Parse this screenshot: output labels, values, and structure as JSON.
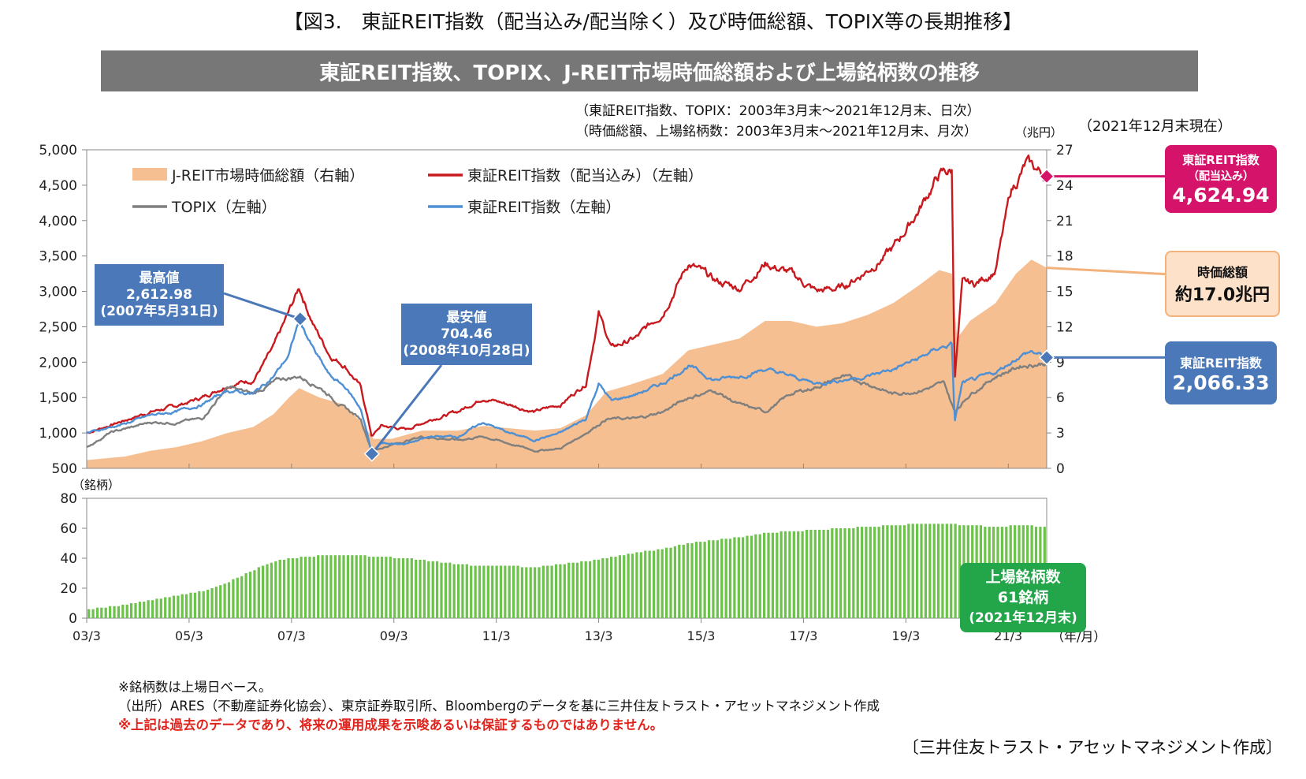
{
  "title": "【図3.　東証REIT指数（配当込み/配当除く）及び時価総額、TOPIX等の長期推移】",
  "banner": "東証REIT指数、TOPIX、J-REIT市場時価総額および上場銘柄数の推移",
  "notes": {
    "line1": "（東証REIT指数、TOPIX：2003年3月末～2021年12月末、日次）",
    "line2": "（時価総額、上場銘柄数：2003年3月末～2021年12月末、月次）",
    "right_unit": "（兆円）",
    "as_of": "（2021年12月末現在）",
    "count_unit": "（銘柄）",
    "x_unit": "（年/月）"
  },
  "legend": {
    "mcap": "J-REIT市場時価総額（右軸）",
    "reit_div": "東証REIT指数（配当込み）（左軸）",
    "topix": "TOPIX（左軸）",
    "reit": "東証REIT指数（左軸）"
  },
  "callouts": {
    "high": {
      "title": "最高値",
      "value": "2,612.98",
      "date": "(2007年5月31日)"
    },
    "low": {
      "title": "最安値",
      "value": "704.46",
      "date": "(2008年10月28日)"
    },
    "reit_div": {
      "title": "東証REIT指数",
      "sub": "（配当込み）",
      "value": "4,624.94"
    },
    "mcap": {
      "title": "時価総額",
      "value": "約17.0兆円"
    },
    "reit": {
      "title": "東証REIT指数",
      "value": "2,066.33"
    },
    "count": {
      "title": "上場銘柄数",
      "value": "61銘柄",
      "date": "(2021年12月末)"
    }
  },
  "footnotes": {
    "f1": "※銘柄数は上場日ベース。",
    "f2": "（出所）ARES（不動産証券化協会）、東京証券取引所、Bloombergのデータを基に三井住友トラスト・アセットマネジメント作成",
    "f3": "※上記は過去のデータであり、将来の運用成果を示唆あるいは保証するものではありません。"
  },
  "credit": "〔三井住友トラスト・アセットマネジメント作成〕",
  "colors": {
    "reit_div": "#c8191e",
    "topix": "#7f7f7f",
    "reit": "#4f8fd3",
    "mcap": "#f5bf91",
    "count": "#6cc24a",
    "callout_blue": "#4a78b8",
    "callout_red": "#d6136a",
    "callout_green": "#23a54a",
    "callout_peach": "#fde1c9"
  },
  "chart_data": [
    {
      "type": "line",
      "x_ticks": [
        "03/3",
        "05/3",
        "07/3",
        "09/3",
        "11/3",
        "13/3",
        "15/3",
        "17/3",
        "19/3",
        "21/3"
      ],
      "xlim": [
        2003.25,
        2022.0
      ],
      "ylim_left": [
        500,
        5000
      ],
      "yticks_left": [
        "500",
        "1,000",
        "1,500",
        "2,000",
        "2,500",
        "3,000",
        "3,500",
        "4,000",
        "4,500",
        "5,000"
      ],
      "ylim_right": [
        0,
        27
      ],
      "yticks_right": [
        "0",
        "3",
        "6",
        "9",
        "12",
        "15",
        "18",
        "21",
        "24",
        "27"
      ],
      "series": [
        {
          "name": "J-REIT市場時価総額（右軸）",
          "axis": "right",
          "style": "area",
          "points": [
            [
              2003.25,
              0.7
            ],
            [
              2004.0,
              1.0
            ],
            [
              2004.5,
              1.5
            ],
            [
              2005.0,
              1.8
            ],
            [
              2005.5,
              2.3
            ],
            [
              2006.0,
              3.0
            ],
            [
              2006.5,
              3.5
            ],
            [
              2006.9,
              4.6
            ],
            [
              2007.2,
              6.0
            ],
            [
              2007.4,
              6.8
            ],
            [
              2007.8,
              6.0
            ],
            [
              2008.2,
              5.5
            ],
            [
              2008.6,
              4.0
            ],
            [
              2008.85,
              2.5
            ],
            [
              2009.2,
              2.5
            ],
            [
              2009.8,
              3.2
            ],
            [
              2010.5,
              3.2
            ],
            [
              2011.0,
              3.6
            ],
            [
              2011.5,
              3.4
            ],
            [
              2012.0,
              3.2
            ],
            [
              2012.5,
              3.4
            ],
            [
              2013.0,
              4.5
            ],
            [
              2013.4,
              6.5
            ],
            [
              2013.8,
              7.0
            ],
            [
              2014.5,
              8.0
            ],
            [
              2015.0,
              10.0
            ],
            [
              2015.5,
              10.5
            ],
            [
              2016.0,
              11.0
            ],
            [
              2016.5,
              12.5
            ],
            [
              2017.0,
              12.5
            ],
            [
              2017.5,
              12.0
            ],
            [
              2018.0,
              12.3
            ],
            [
              2018.5,
              13.0
            ],
            [
              2019.0,
              14.0
            ],
            [
              2019.5,
              15.5
            ],
            [
              2019.9,
              16.8
            ],
            [
              2020.15,
              16.5
            ],
            [
              2020.25,
              11.0
            ],
            [
              2020.5,
              12.5
            ],
            [
              2021.0,
              14.0
            ],
            [
              2021.4,
              16.5
            ],
            [
              2021.7,
              17.7
            ],
            [
              2022.0,
              17.0
            ]
          ]
        },
        {
          "name": "東証REIT指数（配当込み）（左軸）",
          "axis": "left",
          "style": "line",
          "points": [
            [
              2003.25,
              1000
            ],
            [
              2004.0,
              1180
            ],
            [
              2004.5,
              1300
            ],
            [
              2005.0,
              1380
            ],
            [
              2005.5,
              1500
            ],
            [
              2006.0,
              1680
            ],
            [
              2006.5,
              1750
            ],
            [
              2006.9,
              2200
            ],
            [
              2007.2,
              2700
            ],
            [
              2007.4,
              3050
            ],
            [
              2007.7,
              2500
            ],
            [
              2008.0,
              2100
            ],
            [
              2008.3,
              1950
            ],
            [
              2008.6,
              1650
            ],
            [
              2008.82,
              950
            ],
            [
              2009.0,
              1100
            ],
            [
              2009.5,
              1050
            ],
            [
              2010.0,
              1200
            ],
            [
              2010.5,
              1300
            ],
            [
              2011.0,
              1500
            ],
            [
              2011.5,
              1400
            ],
            [
              2012.0,
              1300
            ],
            [
              2012.5,
              1400
            ],
            [
              2013.0,
              1700
            ],
            [
              2013.25,
              2700
            ],
            [
              2013.5,
              2200
            ],
            [
              2014.0,
              2350
            ],
            [
              2014.5,
              2700
            ],
            [
              2015.0,
              3400
            ],
            [
              2015.5,
              3150
            ],
            [
              2016.0,
              3050
            ],
            [
              2016.5,
              3400
            ],
            [
              2017.0,
              3250
            ],
            [
              2017.5,
              3000
            ],
            [
              2018.0,
              3050
            ],
            [
              2018.5,
              3300
            ],
            [
              2019.0,
              3600
            ],
            [
              2019.5,
              4150
            ],
            [
              2019.9,
              4650
            ],
            [
              2020.15,
              4700
            ],
            [
              2020.2,
              1750
            ],
            [
              2020.35,
              3100
            ],
            [
              2020.6,
              3100
            ],
            [
              2021.0,
              3300
            ],
            [
              2021.3,
              4400
            ],
            [
              2021.6,
              4800
            ],
            [
              2022.0,
              4625
            ]
          ]
        },
        {
          "name": "TOPIX（左軸）",
          "axis": "left",
          "style": "line",
          "points": [
            [
              2003.25,
              800
            ],
            [
              2003.7,
              1000
            ],
            [
              2004.5,
              1150
            ],
            [
              2005.0,
              1150
            ],
            [
              2005.5,
              1200
            ],
            [
              2006.0,
              1650
            ],
            [
              2006.5,
              1550
            ],
            [
              2007.0,
              1750
            ],
            [
              2007.4,
              1800
            ],
            [
              2007.8,
              1650
            ],
            [
              2008.2,
              1400
            ],
            [
              2008.6,
              1200
            ],
            [
              2008.82,
              750
            ],
            [
              2009.3,
              850
            ],
            [
              2009.8,
              950
            ],
            [
              2010.5,
              900
            ],
            [
              2011.0,
              950
            ],
            [
              2011.5,
              850
            ],
            [
              2012.0,
              750
            ],
            [
              2012.5,
              780
            ],
            [
              2013.0,
              1000
            ],
            [
              2013.4,
              1200
            ],
            [
              2014.0,
              1200
            ],
            [
              2014.5,
              1300
            ],
            [
              2015.0,
              1500
            ],
            [
              2015.5,
              1600
            ],
            [
              2016.0,
              1400
            ],
            [
              2016.5,
              1300
            ],
            [
              2017.0,
              1550
            ],
            [
              2017.5,
              1650
            ],
            [
              2018.0,
              1800
            ],
            [
              2018.5,
              1700
            ],
            [
              2019.0,
              1550
            ],
            [
              2019.5,
              1600
            ],
            [
              2020.0,
              1700
            ],
            [
              2020.2,
              1300
            ],
            [
              2020.5,
              1550
            ],
            [
              2021.0,
              1800
            ],
            [
              2021.5,
              1950
            ],
            [
              2022.0,
              1990
            ]
          ]
        },
        {
          "name": "東証REIT指数（左軸）",
          "axis": "left",
          "style": "line",
          "points": [
            [
              2003.25,
              1000
            ],
            [
              2004.0,
              1130
            ],
            [
              2004.5,
              1250
            ],
            [
              2005.0,
              1300
            ],
            [
              2005.5,
              1400
            ],
            [
              2006.0,
              1600
            ],
            [
              2006.5,
              1550
            ],
            [
              2006.9,
              1800
            ],
            [
              2007.2,
              2100
            ],
            [
              2007.4,
              2600
            ],
            [
              2007.7,
              2150
            ],
            [
              2008.0,
              1800
            ],
            [
              2008.3,
              1650
            ],
            [
              2008.6,
              1350
            ],
            [
              2008.82,
              720
            ],
            [
              2009.0,
              850
            ],
            [
              2009.5,
              850
            ],
            [
              2010.0,
              950
            ],
            [
              2010.5,
              950
            ],
            [
              2011.0,
              1150
            ],
            [
              2011.5,
              1000
            ],
            [
              2012.0,
              900
            ],
            [
              2012.5,
              1000
            ],
            [
              2013.0,
              1200
            ],
            [
              2013.25,
              1700
            ],
            [
              2013.5,
              1450
            ],
            [
              2014.0,
              1550
            ],
            [
              2014.5,
              1700
            ],
            [
              2015.0,
              1950
            ],
            [
              2015.5,
              1750
            ],
            [
              2016.0,
              1800
            ],
            [
              2016.5,
              1900
            ],
            [
              2017.0,
              1800
            ],
            [
              2017.5,
              1700
            ],
            [
              2018.0,
              1750
            ],
            [
              2018.5,
              1800
            ],
            [
              2019.0,
              1900
            ],
            [
              2019.5,
              2050
            ],
            [
              2019.9,
              2200
            ],
            [
              2020.15,
              2250
            ],
            [
              2020.2,
              1150
            ],
            [
              2020.35,
              1700
            ],
            [
              2020.6,
              1750
            ],
            [
              2021.0,
              1850
            ],
            [
              2021.5,
              2100
            ],
            [
              2021.7,
              2150
            ],
            [
              2022.0,
              2066
            ]
          ]
        }
      ],
      "annotations": [
        {
          "label": "最高値",
          "value": 2612.98,
          "date": "2007-05-31"
        },
        {
          "label": "最安値",
          "value": 704.46,
          "date": "2008-10-28"
        }
      ]
    },
    {
      "type": "bar",
      "name": "上場銘柄数",
      "xlim": [
        2003.25,
        2022.0
      ],
      "ylim": [
        0,
        80
      ],
      "yticks": [
        "0",
        "20",
        "40",
        "60",
        "80"
      ],
      "points": [
        [
          2003.25,
          6
        ],
        [
          2004.0,
          9
        ],
        [
          2004.5,
          12
        ],
        [
          2005.0,
          15
        ],
        [
          2005.5,
          18
        ],
        [
          2006.0,
          24
        ],
        [
          2006.5,
          32
        ],
        [
          2007.0,
          39
        ],
        [
          2007.5,
          41
        ],
        [
          2008.0,
          42
        ],
        [
          2008.5,
          42
        ],
        [
          2009.0,
          41
        ],
        [
          2009.5,
          40
        ],
        [
          2010.0,
          38
        ],
        [
          2010.5,
          36
        ],
        [
          2011.0,
          35
        ],
        [
          2011.5,
          35
        ],
        [
          2012.0,
          34
        ],
        [
          2012.5,
          36
        ],
        [
          2013.0,
          38
        ],
        [
          2013.5,
          41
        ],
        [
          2014.0,
          44
        ],
        [
          2014.5,
          46
        ],
        [
          2015.0,
          50
        ],
        [
          2015.5,
          52
        ],
        [
          2016.0,
          54
        ],
        [
          2016.5,
          57
        ],
        [
          2017.0,
          58
        ],
        [
          2017.5,
          59
        ],
        [
          2018.0,
          60
        ],
        [
          2018.5,
          61
        ],
        [
          2019.0,
          62
        ],
        [
          2019.5,
          63
        ],
        [
          2020.0,
          63
        ],
        [
          2020.5,
          62
        ],
        [
          2021.0,
          61
        ],
        [
          2021.5,
          62
        ],
        [
          2022.0,
          61
        ]
      ]
    }
  ]
}
